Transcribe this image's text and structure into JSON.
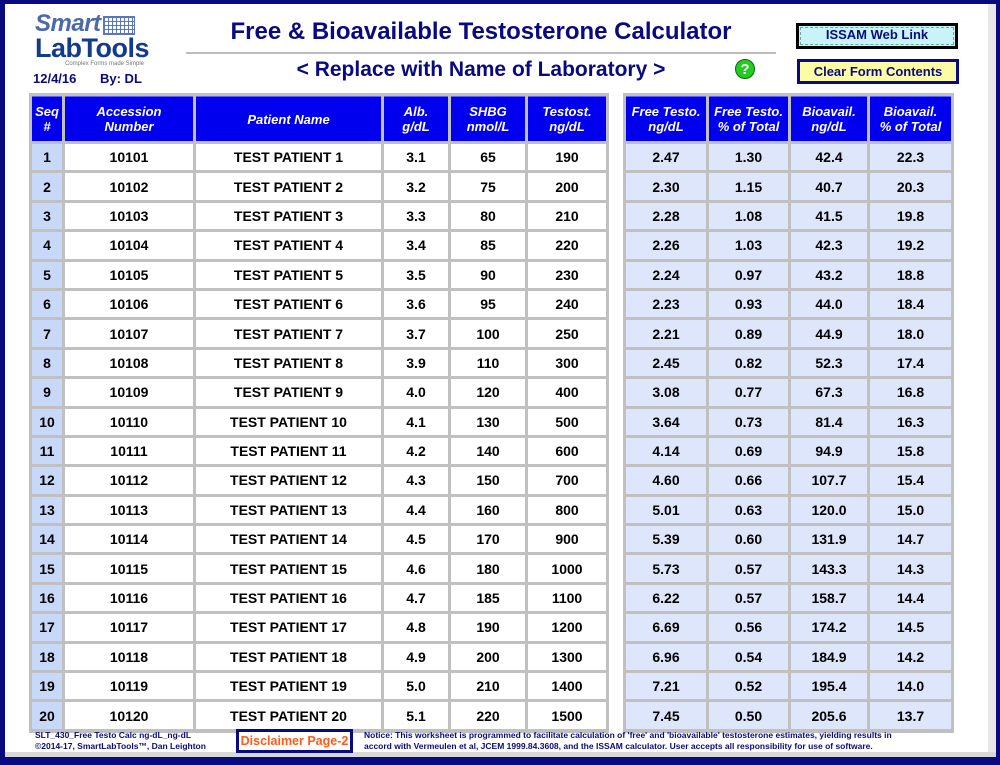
{
  "header": {
    "logo_top": "Smart",
    "logo_bottom": "LabTools",
    "logo_tagline": "Complex Forms made Simple",
    "date": "12/4/16",
    "by": "By: DL",
    "title": "Free & Bioavailable Testosterone Calculator",
    "subtitle": "< Replace with Name of Laboratory >",
    "help_glyph": "?"
  },
  "buttons": {
    "issam": "ISSAM Web Link",
    "clear": "Clear Form Contents",
    "disclaimer": "Disclaimer Page-2"
  },
  "input_table": {
    "headers": [
      [
        "Seq",
        "#"
      ],
      [
        "Accession",
        "Number"
      ],
      [
        "Patient Name",
        ""
      ],
      [
        "Alb.",
        "g/dL"
      ],
      [
        "SHBG",
        "nmol/L"
      ],
      [
        "Testost.",
        "ng/dL"
      ]
    ],
    "rows": [
      [
        "1",
        "10101",
        "TEST PATIENT 1",
        "3.1",
        "65",
        "190"
      ],
      [
        "2",
        "10102",
        "TEST PATIENT 2",
        "3.2",
        "75",
        "200"
      ],
      [
        "3",
        "10103",
        "TEST PATIENT 3",
        "3.3",
        "80",
        "210"
      ],
      [
        "4",
        "10104",
        "TEST PATIENT 4",
        "3.4",
        "85",
        "220"
      ],
      [
        "5",
        "10105",
        "TEST PATIENT 5",
        "3.5",
        "90",
        "230"
      ],
      [
        "6",
        "10106",
        "TEST PATIENT 6",
        "3.6",
        "95",
        "240"
      ],
      [
        "7",
        "10107",
        "TEST PATIENT 7",
        "3.7",
        "100",
        "250"
      ],
      [
        "8",
        "10108",
        "TEST PATIENT 8",
        "3.9",
        "110",
        "300"
      ],
      [
        "9",
        "10109",
        "TEST PATIENT 9",
        "4.0",
        "120",
        "400"
      ],
      [
        "10",
        "10110",
        "TEST PATIENT 10",
        "4.1",
        "130",
        "500"
      ],
      [
        "11",
        "10111",
        "TEST PATIENT 11",
        "4.2",
        "140",
        "600"
      ],
      [
        "12",
        "10112",
        "TEST PATIENT 12",
        "4.3",
        "150",
        "700"
      ],
      [
        "13",
        "10113",
        "TEST PATIENT 13",
        "4.4",
        "160",
        "800"
      ],
      [
        "14",
        "10114",
        "TEST PATIENT 14",
        "4.5",
        "170",
        "900"
      ],
      [
        "15",
        "10115",
        "TEST PATIENT 15",
        "4.6",
        "180",
        "1000"
      ],
      [
        "16",
        "10116",
        "TEST PATIENT 16",
        "4.7",
        "185",
        "1100"
      ],
      [
        "17",
        "10117",
        "TEST PATIENT 17",
        "4.8",
        "190",
        "1200"
      ],
      [
        "18",
        "10118",
        "TEST PATIENT 18",
        "4.9",
        "200",
        "1300"
      ],
      [
        "19",
        "10119",
        "TEST PATIENT 19",
        "5.0",
        "210",
        "1400"
      ],
      [
        "20",
        "10120",
        "TEST PATIENT 20",
        "5.1",
        "220",
        "1500"
      ]
    ]
  },
  "result_table": {
    "headers": [
      [
        "Free Testo.",
        "ng/dL"
      ],
      [
        "Free Testo.",
        "% of Total"
      ],
      [
        "Bioavail.",
        "ng/dL"
      ],
      [
        "Bioavail.",
        "% of Total"
      ]
    ],
    "rows": [
      [
        "2.47",
        "1.30",
        "42.4",
        "22.3"
      ],
      [
        "2.30",
        "1.15",
        "40.7",
        "20.3"
      ],
      [
        "2.28",
        "1.08",
        "41.5",
        "19.8"
      ],
      [
        "2.26",
        "1.03",
        "42.3",
        "19.2"
      ],
      [
        "2.24",
        "0.97",
        "43.2",
        "18.8"
      ],
      [
        "2.23",
        "0.93",
        "44.0",
        "18.4"
      ],
      [
        "2.21",
        "0.89",
        "44.9",
        "18.0"
      ],
      [
        "2.45",
        "0.82",
        "52.3",
        "17.4"
      ],
      [
        "3.08",
        "0.77",
        "67.3",
        "16.8"
      ],
      [
        "3.64",
        "0.73",
        "81.4",
        "16.3"
      ],
      [
        "4.14",
        "0.69",
        "94.9",
        "15.8"
      ],
      [
        "4.60",
        "0.66",
        "107.7",
        "15.4"
      ],
      [
        "5.01",
        "0.63",
        "120.0",
        "15.0"
      ],
      [
        "5.39",
        "0.60",
        "131.9",
        "14.7"
      ],
      [
        "5.73",
        "0.57",
        "143.3",
        "14.3"
      ],
      [
        "6.22",
        "0.57",
        "158.7",
        "14.4"
      ],
      [
        "6.69",
        "0.56",
        "174.2",
        "14.5"
      ],
      [
        "6.96",
        "0.54",
        "184.9",
        "14.2"
      ],
      [
        "7.21",
        "0.52",
        "195.4",
        "14.0"
      ],
      [
        "7.45",
        "0.50",
        "205.6",
        "13.7"
      ]
    ]
  },
  "footer": {
    "file_line1": "SLT_430_Free Testo Calc ng-dL_ng-dL",
    "file_line2": "©2014-17, SmartLabTools™, Dan Leighton",
    "notice_line1": "Notice: This worksheet is programmed to facilitate calculation of 'free' and 'bioavailable' testosterone estimates, yielding results in",
    "notice_line2": "accord with Vermeulen et al, JCEM 1999.84.3608, and the ISSAM calculator. User accepts all responsibility for use of software."
  },
  "colors": {
    "frame": "#0a0a80",
    "header_bg": "#0000ee",
    "seq_bg": "#c8d8f8",
    "result_bg": "#dde6fb",
    "grid": "#c0c0c0",
    "disclaimer_text": "#ff5a1a"
  }
}
